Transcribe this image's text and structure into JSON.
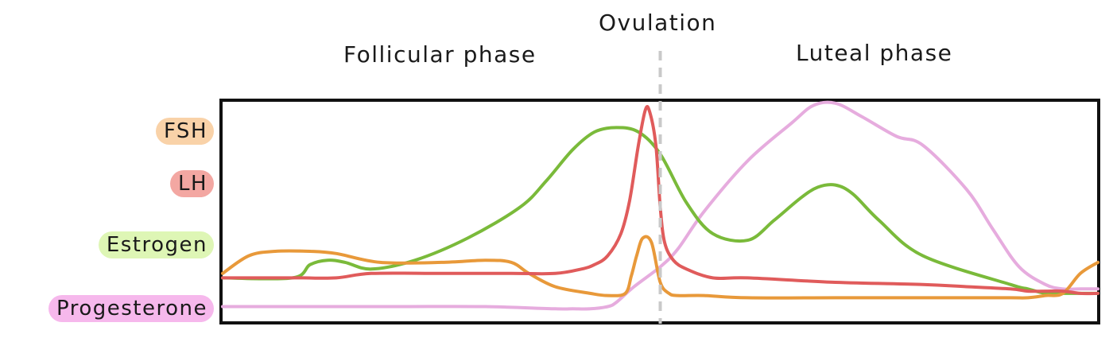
{
  "chart_data": {
    "type": "line",
    "title": "",
    "xlabel": "",
    "ylabel": "",
    "x_range": [
      0,
      100
    ],
    "y_range": [
      0,
      100
    ],
    "grid": false,
    "legend_position": "left",
    "phases": [
      {
        "key": "follicular",
        "label": "Follicular phase"
      },
      {
        "key": "ovulation",
        "label": "Ovulation",
        "x": 50
      },
      {
        "key": "luteal",
        "label": "Luteal phase"
      }
    ],
    "series": [
      {
        "name": "FSH",
        "color": "#e8993a",
        "legend_bg": "#f9d2a8",
        "x": [
          0,
          3,
          6,
          10,
          13,
          18,
          25,
          30,
          33,
          35,
          38,
          42,
          44,
          46,
          46.7,
          47.3,
          48,
          49,
          50,
          51,
          52,
          55,
          60,
          70,
          80,
          85,
          90,
          92,
          94,
          96,
          98,
          100
        ],
        "y": [
          22,
          30,
          32,
          32,
          31,
          27,
          27,
          28,
          27,
          22,
          16,
          13,
          12,
          13,
          21,
          30,
          38,
          36,
          18,
          13,
          12,
          12,
          11,
          11,
          11,
          11,
          11,
          11,
          12,
          13,
          22,
          27
        ]
      },
      {
        "name": "LH",
        "color": "#e05b5b",
        "legend_bg": "#f3a7a2",
        "x": [
          0,
          2,
          6,
          9,
          13,
          17,
          25,
          33,
          38,
          41,
          42.5,
          44,
          45.5,
          46.5,
          47.5,
          48.3,
          48.8,
          49.5,
          50,
          50.5,
          51.5,
          53,
          56,
          60,
          70,
          80,
          85,
          90,
          92,
          94,
          96,
          98,
          100
        ],
        "y": [
          20,
          20,
          20,
          20,
          20,
          22,
          22,
          22,
          22,
          24,
          26,
          30,
          40,
          55,
          80,
          96,
          95,
          80,
          52,
          36,
          28,
          24,
          20,
          20,
          18,
          17,
          16,
          15,
          14,
          14,
          14,
          13,
          13
        ]
      },
      {
        "name": "Estrogen",
        "color": "#7aba3a",
        "legend_bg": "#def6b5",
        "x": [
          0,
          8,
          10,
          12,
          14,
          17,
          22,
          28,
          34,
          37,
          40,
          42.5,
          45,
          47.5,
          50,
          53,
          56,
          60,
          63,
          66,
          68,
          70,
          72,
          75,
          80,
          90,
          92,
          94,
          96,
          98,
          100
        ],
        "y": [
          20,
          20,
          26,
          28,
          27,
          24,
          28,
          38,
          52,
          64,
          78,
          86,
          88,
          86,
          76,
          54,
          40,
          37,
          46,
          56,
          61,
          62,
          58,
          46,
          30,
          17,
          15,
          13,
          13,
          13,
          13
        ]
      },
      {
        "name": "Progesterone",
        "color": "#e6acde",
        "legend_bg": "#f6b8ec",
        "x": [
          0,
          10,
          20,
          30,
          38,
          40,
          42,
          44,
          45,
          47,
          50,
          52,
          55,
          60,
          65,
          67.5,
          70,
          73,
          77,
          80,
          85,
          88,
          91,
          94,
          96,
          98,
          100
        ],
        "y": [
          7,
          7,
          7,
          7,
          6,
          6,
          6,
          7,
          9,
          16,
          25,
          33,
          50,
          73,
          90,
          98,
          99,
          93,
          84,
          80,
          60,
          42,
          25,
          17,
          15,
          15,
          15
        ]
      }
    ]
  }
}
